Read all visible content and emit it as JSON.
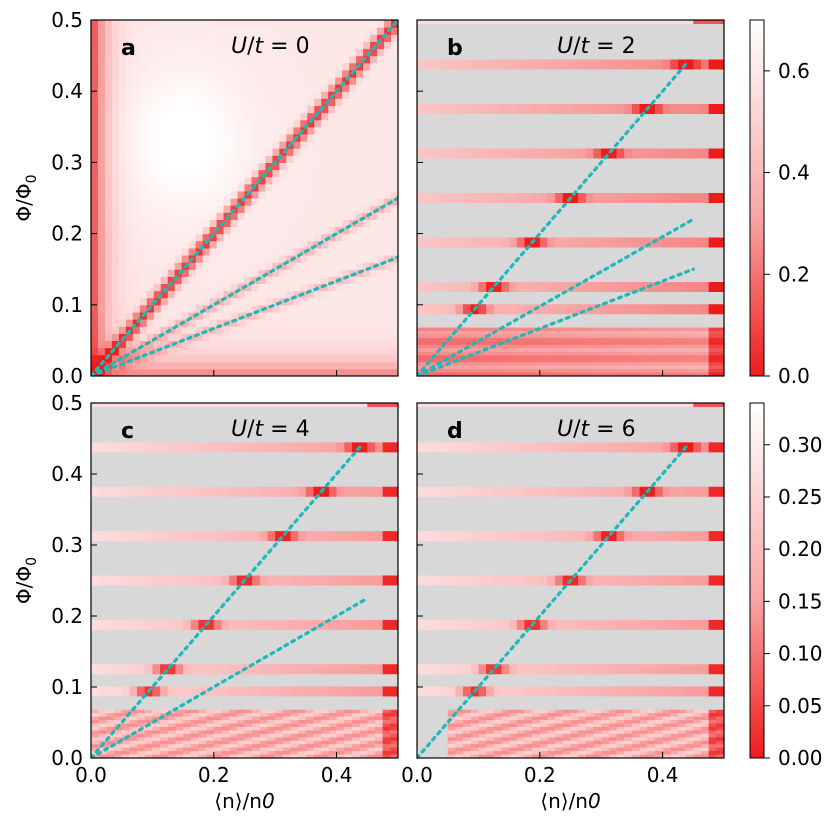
{
  "figure": {
    "colors": {
      "heat_low": "#ee1b1b",
      "heat_high": "#ffffff",
      "missing": "#d8d8d8",
      "guide_line": "#1eb8b8"
    }
  },
  "chart_data": [
    {
      "type": "heatmap",
      "panel_letter": "a",
      "title": "U/t = 0",
      "title_u": "U",
      "title_t": "t",
      "title_value": "0",
      "xlabel": "",
      "ylabel": "Φ/Φ0",
      "xlim": [
        0.0,
        0.5
      ],
      "ylim": [
        0.0,
        0.5
      ],
      "x_ticks": [],
      "y_ticks": [
        "0.0",
        "0.1",
        "0.2",
        "0.3",
        "0.4",
        "0.5"
      ],
      "colorbar": "top",
      "field": "continuous",
      "dotted_lines": [
        {
          "x": [
            0.0,
            0.5
          ],
          "y": [
            0.0,
            0.5
          ]
        },
        {
          "x": [
            0.0,
            0.5
          ],
          "y": [
            0.0,
            0.25
          ]
        },
        {
          "x": [
            0.0,
            0.5
          ],
          "y": [
            0.0,
            0.1667
          ]
        }
      ]
    },
    {
      "type": "heatmap",
      "panel_letter": "b",
      "title": "U/t = 2",
      "title_u": "U",
      "title_t": "t",
      "title_value": "2",
      "xlabel": "",
      "ylabel": "",
      "xlim": [
        0.0,
        0.5
      ],
      "ylim": [
        0.0,
        0.5
      ],
      "x_ticks": [],
      "y_ticks": [],
      "colorbar": "top",
      "field": "bands",
      "bands": [
        {
          "flux": 0.4375,
          "peak_n": 0.4375
        },
        {
          "flux": 0.375,
          "peak_n": 0.375
        },
        {
          "flux": 0.3125,
          "peak_n": 0.3125
        },
        {
          "flux": 0.25,
          "peak_n": 0.25
        },
        {
          "flux": 0.1875,
          "peak_n": 0.1875
        },
        {
          "flux": 0.125,
          "peak_n": 0.125
        },
        {
          "flux": 0.09375,
          "peak_n": 0.09375
        }
      ],
      "dotted_lines": [
        {
          "x": [
            0.0,
            0.44
          ],
          "y": [
            0.0,
            0.44
          ]
        },
        {
          "x": [
            0.0,
            0.45
          ],
          "y": [
            0.0,
            0.22
          ]
        },
        {
          "x": [
            0.0,
            0.45
          ],
          "y": [
            0.0,
            0.15
          ]
        }
      ]
    },
    {
      "type": "heatmap",
      "panel_letter": "c",
      "title": "U/t = 4",
      "title_u": "U",
      "title_t": "t",
      "title_value": "4",
      "xlabel": "⟨n⟩/n0",
      "ylabel": "Φ/Φ0",
      "xlim": [
        0.0,
        0.5
      ],
      "ylim": [
        0.0,
        0.5
      ],
      "x_ticks": [
        "0.0",
        "0.2",
        "0.4"
      ],
      "y_ticks": [
        "0.0",
        "0.1",
        "0.2",
        "0.3",
        "0.4",
        "0.5"
      ],
      "colorbar": "bottom",
      "field": "bands",
      "bands": [
        {
          "flux": 0.4375,
          "peak_n": 0.4375
        },
        {
          "flux": 0.375,
          "peak_n": 0.375
        },
        {
          "flux": 0.3125,
          "peak_n": 0.3125
        },
        {
          "flux": 0.25,
          "peak_n": 0.25
        },
        {
          "flux": 0.1875,
          "peak_n": 0.1875
        },
        {
          "flux": 0.125,
          "peak_n": 0.125
        },
        {
          "flux": 0.09375,
          "peak_n": 0.09375
        }
      ],
      "dotted_lines": [
        {
          "x": [
            0.0,
            0.44
          ],
          "y": [
            0.0,
            0.44
          ]
        },
        {
          "x": [
            0.0,
            0.45
          ],
          "y": [
            0.0,
            0.225
          ]
        }
      ]
    },
    {
      "type": "heatmap",
      "panel_letter": "d",
      "title": "U/t = 6",
      "title_u": "U",
      "title_t": "t",
      "title_value": "6",
      "xlabel": "⟨n⟩/n0",
      "ylabel": "",
      "xlim": [
        0.0,
        0.5
      ],
      "ylim": [
        0.0,
        0.5
      ],
      "x_ticks": [
        "0.0",
        "0.2",
        "0.4"
      ],
      "y_ticks": [],
      "colorbar": "bottom",
      "field": "bands",
      "bands": [
        {
          "flux": 0.4375,
          "peak_n": 0.4375
        },
        {
          "flux": 0.375,
          "peak_n": 0.375
        },
        {
          "flux": 0.3125,
          "peak_n": 0.3125
        },
        {
          "flux": 0.25,
          "peak_n": 0.25
        },
        {
          "flux": 0.1875,
          "peak_n": 0.1875
        },
        {
          "flux": 0.125,
          "peak_n": 0.125
        },
        {
          "flux": 0.09375,
          "peak_n": 0.09375
        }
      ],
      "dotted_lines": [
        {
          "x": [
            0.0,
            0.44
          ],
          "y": [
            0.0,
            0.44
          ]
        }
      ]
    }
  ],
  "colorbars": {
    "top": {
      "range": [
        0.0,
        0.7
      ],
      "ticks": [
        0.0,
        0.2,
        0.4,
        0.6
      ],
      "tick_labels": [
        "0.0",
        "0.2",
        "0.4",
        "0.6"
      ]
    },
    "bottom": {
      "range": [
        0.0,
        0.34
      ],
      "ticks": [
        0.0,
        0.05,
        0.1,
        0.15,
        0.2,
        0.25,
        0.3
      ],
      "tick_labels": [
        "0.00",
        "0.05",
        "0.10",
        "0.15",
        "0.20",
        "0.25",
        "0.30"
      ]
    }
  }
}
